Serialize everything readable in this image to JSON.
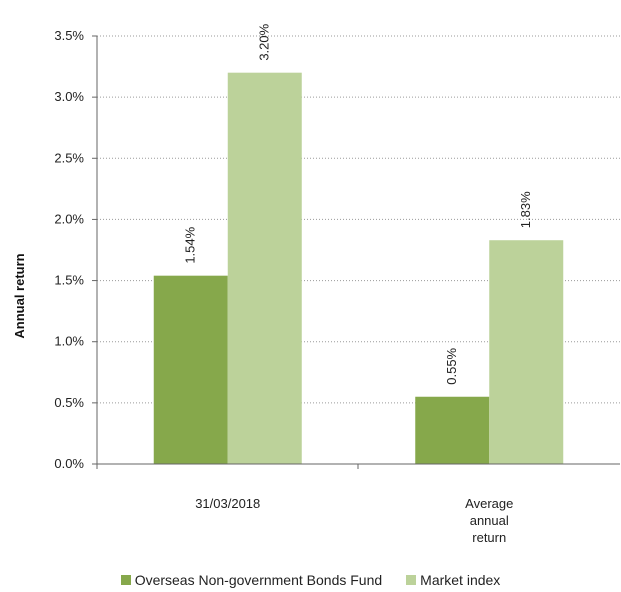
{
  "chart_data": {
    "type": "bar",
    "categories": [
      [
        "31/03/2018"
      ],
      [
        "Average",
        "annual",
        "return"
      ]
    ],
    "series": [
      {
        "name": "Overseas Non-government Bonds Fund",
        "values": [
          1.54,
          0.55
        ],
        "labels": [
          "1.54%",
          "0.55%"
        ],
        "color": "#86a84b"
      },
      {
        "name": "Market index",
        "values": [
          3.2,
          1.83
        ],
        "labels": [
          "3.20%",
          "1.83%"
        ],
        "color": "#bcd29a"
      }
    ],
    "ylabel": "Annual return",
    "ylim": [
      0,
      3.5
    ],
    "yticks": [
      "0.0%",
      "0.5%",
      "1.0%",
      "1.5%",
      "2.0%",
      "2.5%",
      "3.0%",
      "3.5%"
    ],
    "grid": "dotted horizontal",
    "legend": "bottom-center"
  }
}
